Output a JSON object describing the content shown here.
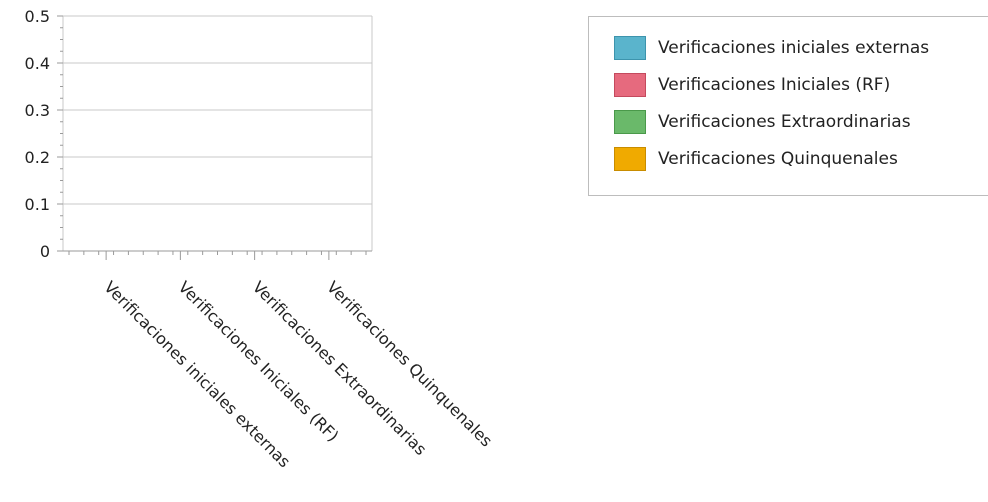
{
  "chart_data": {
    "type": "bar",
    "categories": [
      "Verificaciones iniciales externas",
      "Verificaciones Iniciales (RF)",
      "Verificaciones Extraordinarias",
      "Verificaciones Quinquenales"
    ],
    "series": [
      {
        "name": "Verificaciones iniciales externas",
        "values": [
          0,
          0,
          0,
          0
        ],
        "color": "#5ab4cc"
      },
      {
        "name": "Verificaciones Iniciales (RF)",
        "values": [
          0,
          0,
          0,
          0
        ],
        "color": "#e66a7e"
      },
      {
        "name": "Verificaciones Extraordinarias",
        "values": [
          0,
          0,
          0,
          0
        ],
        "color": "#6ab96a"
      },
      {
        "name": "Verificaciones Quinquenales",
        "values": [
          0,
          0,
          0,
          0
        ],
        "color": "#f0aa00"
      }
    ],
    "ylim": [
      0,
      0.5
    ],
    "yticks": [
      "0",
      "0.1",
      "0.2",
      "0.3",
      "0.4",
      "0.5"
    ],
    "grid": true,
    "legend_position": "top-right"
  },
  "legend": {
    "items": [
      {
        "label": "Verificaciones iniciales externas",
        "color": "#5ab4cc",
        "border": "#3d94ad"
      },
      {
        "label": "Verificaciones Iniciales (RF)",
        "color": "#e66a7e",
        "border": "#c44a5e"
      },
      {
        "label": "Verificaciones Extraordinarias",
        "color": "#6ab96a",
        "border": "#4a994a"
      },
      {
        "label": "Verificaciones Quinquenales",
        "color": "#f0aa00",
        "border": "#c88c00"
      }
    ]
  }
}
